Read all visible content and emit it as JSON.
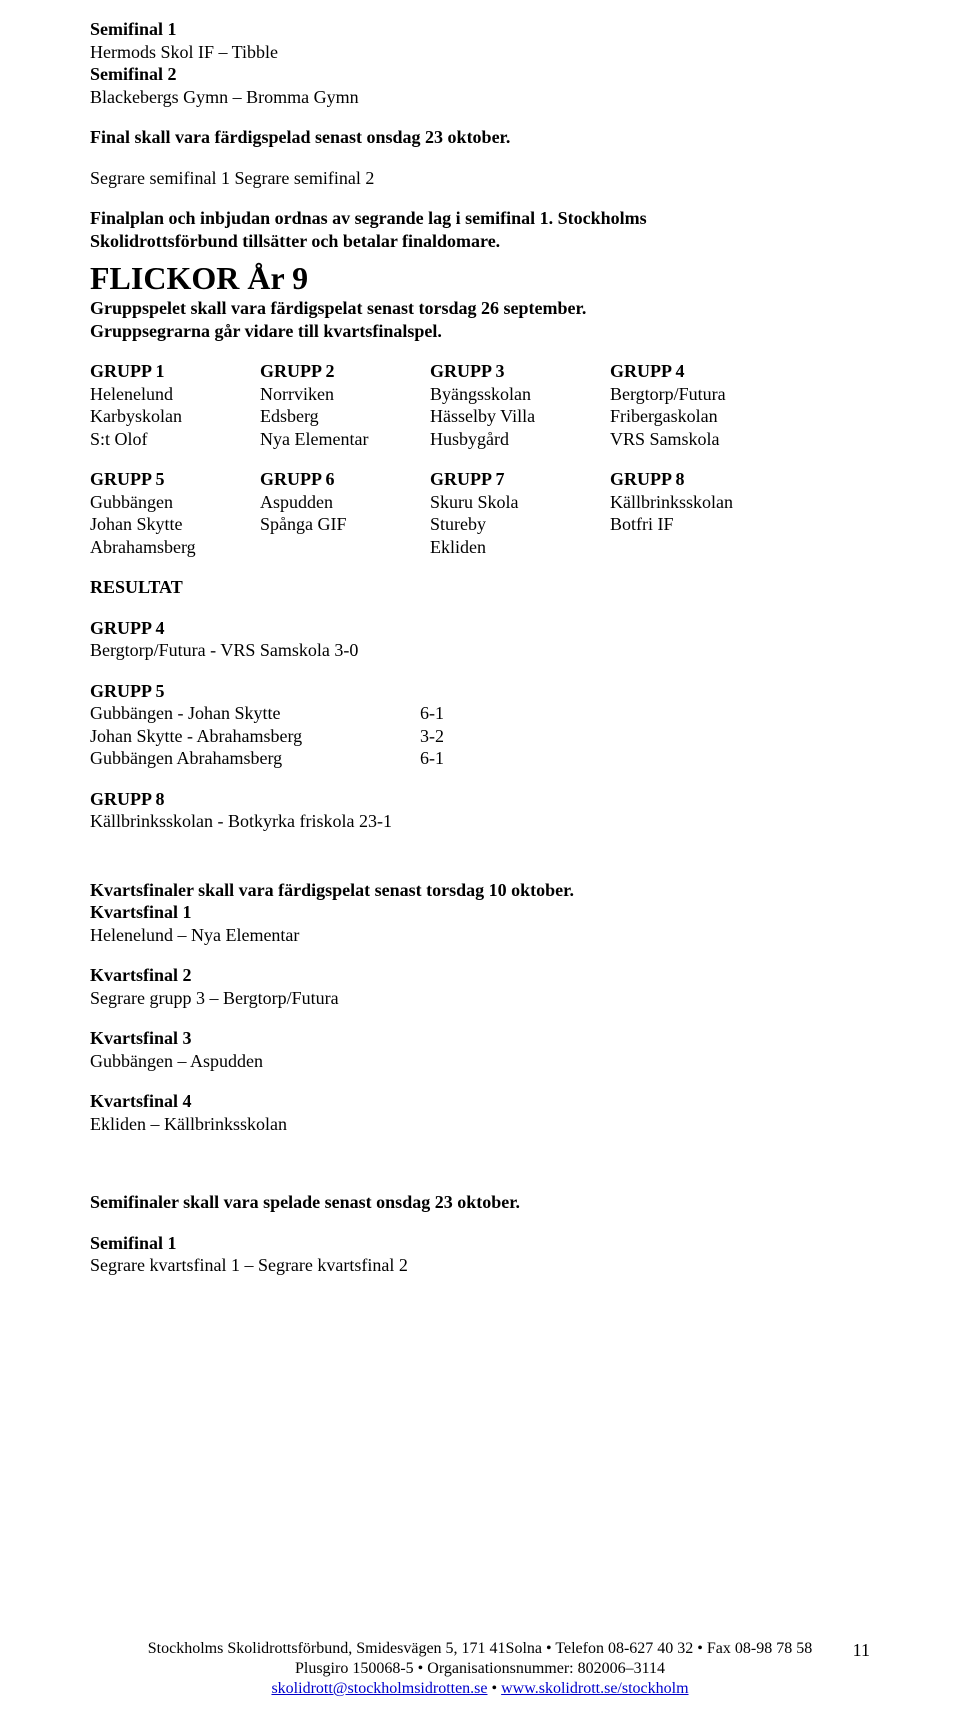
{
  "semifinals": {
    "sf1_label": "Semifinal 1",
    "sf1_match": "Hermods Skol IF – Tibble",
    "sf2_label": "Semifinal 2",
    "sf2_match": "Blackebergs Gymn – Bromma Gymn"
  },
  "final_deadline": "Final skall vara färdigspelad senast onsdag 23 oktober.",
  "final_match": "Segrare semifinal 1 Segrare semifinal 2",
  "finalplan_line1": "Finalplan och inbjudan ordnas av segrande lag i semifinal 1. Stockholms",
  "finalplan_line2": "Skolidrottsförbund tillsätter och betalar finaldomare.",
  "section_title": "FLICKOR År 9",
  "groupplay_line1": "Gruppspelet skall vara färdigspelat senast torsdag 26  september.",
  "groupplay_line2": "Gruppsegrarna går vidare till kvartsfinalspel.",
  "groups_block1": {
    "headers": [
      "GRUPP 1",
      "GRUPP 2",
      "GRUPP 3",
      "GRUPP 4"
    ],
    "rows": [
      [
        "Helenelund",
        "Norrviken",
        "Byängsskolan",
        "Bergtorp/Futura"
      ],
      [
        "Karbyskolan",
        "Edsberg",
        "Hässelby Villa",
        "Fribergaskolan"
      ],
      [
        "S:t Olof",
        "Nya Elementar",
        "Husbygård",
        "VRS Samskola"
      ]
    ]
  },
  "groups_block2": {
    "headers": [
      "GRUPP 5",
      "GRUPP 6",
      "GRUPP 7",
      "GRUPP 8"
    ],
    "rows": [
      [
        "Gubbängen",
        "Aspudden",
        "Skuru Skola",
        "Källbrinksskolan"
      ],
      [
        "Johan Skytte",
        "Spånga GIF",
        "Stureby",
        "Botfri IF"
      ],
      [
        "Abrahamsberg",
        "",
        "Ekliden",
        ""
      ]
    ]
  },
  "resultat_label": "RESULTAT",
  "grupp4_label": "GRUPP 4",
  "grupp4_result": "Bergtorp/Futura - VRS Samskola  3-0",
  "grupp5_label": "GRUPP 5",
  "grupp5_results": [
    {
      "match": "Gubbängen - Johan Skytte",
      "score": "6-1"
    },
    {
      "match": "Johan Skytte - Abrahamsberg",
      "score": "3-2"
    },
    {
      "match": "Gubbängen  Abrahamsberg",
      "score": "6-1"
    }
  ],
  "grupp8_label": "GRUPP 8",
  "grupp8_result": "Källbrinksskolan - Botkyrka friskola 23-1",
  "kvart_deadline": "Kvartsfinaler skall vara färdigspelat senast torsdag 10 oktober.",
  "kvart": [
    {
      "label": "Kvartsfinal 1",
      "match": "Helenelund – Nya Elementar"
    },
    {
      "label": "Kvartsfinal 2",
      "match": "Segrare grupp 3 – Bergtorp/Futura"
    },
    {
      "label": "Kvartsfinal 3",
      "match": "Gubbängen – Aspudden"
    },
    {
      "label": "Kvartsfinal 4",
      "match": "Ekliden – Källbrinksskolan"
    }
  ],
  "semi_deadline": "Semifinaler skall vara spelade senast onsdag 23 oktober.",
  "semi1_label": "Semifinal 1",
  "semi1_match": "Segrare kvartsfinal 1 – Segrare kvartsfinal 2",
  "footer": {
    "line1": "Stockholms Skolidrottsförbund, Smidesvägen 5, 171 41Solna • Telefon 08-627 40 32 • Fax 08-98 78 58",
    "line2": "Plusgiro 150068-5 • Organisationsnummer: 802006–3114",
    "email": "skolidrott@stockholmsidrotten.se",
    "sep": " • ",
    "url": "www.skolidrott.se/stockholm",
    "page": "11"
  }
}
